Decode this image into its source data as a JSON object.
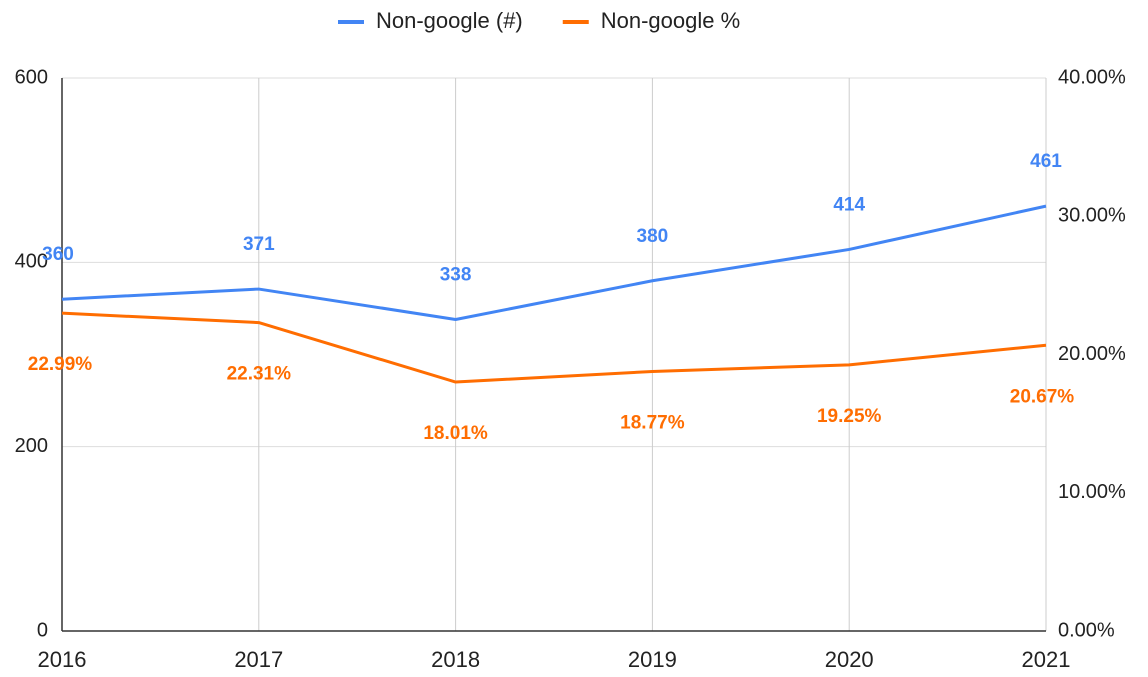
{
  "chart_data": {
    "type": "line",
    "categories": [
      "2016",
      "2017",
      "2018",
      "2019",
      "2020",
      "2021"
    ],
    "series": [
      {
        "name": "Non-google (#)",
        "color": "#4285f4",
        "values": [
          360,
          371,
          338,
          380,
          414,
          461
        ]
      },
      {
        "name": "Non-google %",
        "color": "#ff6d01",
        "axis": "y2",
        "values": [
          22.99,
          22.31,
          18.01,
          18.77,
          19.25,
          20.67
        ],
        "value_labels": [
          "22.99%",
          "22.31%",
          "18.01%",
          "18.77%",
          "19.25%",
          "20.67%"
        ]
      }
    ],
    "ylim": [
      0,
      600
    ],
    "yticks": [
      0,
      200,
      400,
      600
    ],
    "y2lim": [
      0,
      40
    ],
    "y2ticks": [
      {
        "value": 0,
        "label": "0.00%"
      },
      {
        "value": 10,
        "label": "10.00%"
      },
      {
        "value": 20,
        "label": "20.00%"
      },
      {
        "value": 30,
        "label": "30.00%"
      },
      {
        "value": 40,
        "label": "40.00%"
      }
    ],
    "grid": true,
    "legend": "top"
  }
}
